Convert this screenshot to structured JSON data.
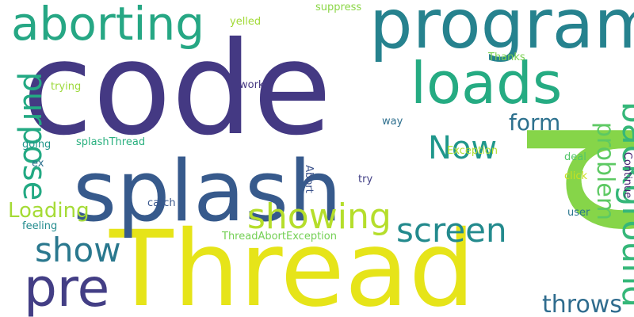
{
  "words": [
    {
      "text": "code",
      "color": "#443983"
    },
    {
      "text": "Thread",
      "color": "#e6e419"
    },
    {
      "text": "program",
      "color": "#26828e"
    },
    {
      "text": "splash",
      "color": "#375a8c"
    },
    {
      "text": "p",
      "color": "#86d549"
    },
    {
      "text": "aborting",
      "color": "#26a784"
    },
    {
      "text": "loads",
      "color": "#25ab82"
    },
    {
      "text": "showing",
      "color": "#b5de2b"
    },
    {
      "text": "screen",
      "color": "#238a8d"
    },
    {
      "text": "pre",
      "color": "#433e85"
    },
    {
      "text": "background",
      "color": "#35b779"
    },
    {
      "text": "purpose",
      "color": "#23a983"
    },
    {
      "text": "show",
      "color": "#2a788e"
    },
    {
      "text": "Now",
      "color": "#1f978b"
    },
    {
      "text": "problem",
      "color": "#5dc963"
    },
    {
      "text": "throws",
      "color": "#2f6c8e"
    },
    {
      "text": "form",
      "color": "#2d718e"
    },
    {
      "text": "Loading",
      "color": "#a5db36"
    },
    {
      "text": "Thanks",
      "color": "#7ad151"
    },
    {
      "text": "suppress",
      "color": "#8bd646"
    },
    {
      "text": "yelled",
      "color": "#a2da37"
    },
    {
      "text": "work",
      "color": "#453781"
    },
    {
      "text": "way",
      "color": "#2e6f8e"
    },
    {
      "text": "trying",
      "color": "#9dd93b"
    },
    {
      "text": "going",
      "color": "#1f968b"
    },
    {
      "text": "splashThread",
      "color": "#2ab07f"
    },
    {
      "text": "ex",
      "color": "#2d708e"
    },
    {
      "text": "Exception",
      "color": "#b2dd2d"
    },
    {
      "text": "deal",
      "color": "#52c569"
    },
    {
      "text": "click",
      "color": "#c8e020"
    },
    {
      "text": "user",
      "color": "#2a768e"
    },
    {
      "text": "Continue",
      "color": "#482173"
    },
    {
      "text": "Abort",
      "color": "#3b528b"
    },
    {
      "text": "try",
      "color": "#424086"
    },
    {
      "text": "catch",
      "color": "#39568c"
    },
    {
      "text": "feeling",
      "color": "#228b8d"
    },
    {
      "text": "ThreadAbortException",
      "color": "#74d055"
    }
  ]
}
